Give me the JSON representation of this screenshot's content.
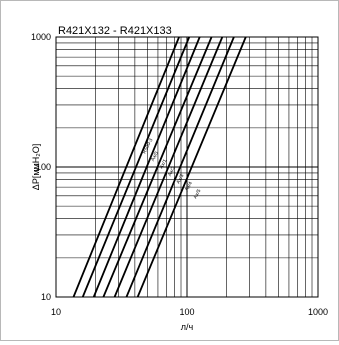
{
  "chart_data": {
    "type": "line",
    "title": "R421X132 - R421X133",
    "xlabel": "л/ч",
    "ylabel": "ΔP[ммH₂O]",
    "x_scale": "log",
    "y_scale": "log",
    "xlim": [
      10,
      1000
    ],
    "ylim": [
      10,
      1000
    ],
    "x_ticks": [
      "10",
      "100",
      "1000"
    ],
    "y_ticks": [
      "10",
      "100",
      "1000"
    ],
    "grid": true,
    "series": [
      {
        "name": "R500-3",
        "x": [
          13.6,
          87
        ],
        "y": [
          10,
          1000
        ]
      },
      {
        "name": "Ax/0",
        "x": [
          16,
          104
        ],
        "y": [
          10,
          1000
        ]
      },
      {
        "name": "Ax/1",
        "x": [
          19.4,
          125
        ],
        "y": [
          10,
          1000
        ]
      },
      {
        "name": "Ax/2",
        "x": [
          23,
          154
        ],
        "y": [
          10,
          1000
        ]
      },
      {
        "name": "Ax/3",
        "x": [
          28,
          186
        ],
        "y": [
          10,
          1000
        ]
      },
      {
        "name": "Ax/4",
        "x": [
          34.5,
          228
        ],
        "y": [
          10,
          1000
        ]
      },
      {
        "name": "Ax/5",
        "x": [
          42,
          281
        ],
        "y": [
          10,
          1000
        ]
      }
    ],
    "curve_label_texts": [
      "R500-3",
      "Ax/0",
      "Ax/1",
      "Ax/2",
      "Ax/3",
      "Ax/4",
      "Ax/5"
    ]
  }
}
